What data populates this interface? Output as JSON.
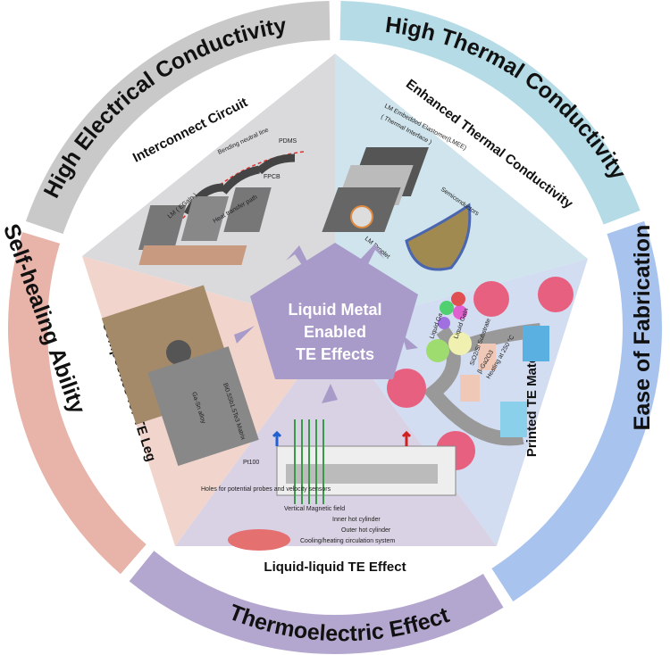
{
  "center": {
    "lines": [
      "Liquid Metal",
      "Enabled",
      "TE  Effects"
    ]
  },
  "ring": [
    {
      "label": "High Electrical Conductivity",
      "color": "#c9c9c9"
    },
    {
      "label": "High Thermal Conductivity",
      "color": "#b5dce6"
    },
    {
      "label": "Ease of Fabrication",
      "color": "#a8c4ee"
    },
    {
      "label": "Thermoelectric Effect",
      "color": "#b4a7cf"
    },
    {
      "label": "Self-healing Ability",
      "color": "#e8b3a8"
    }
  ],
  "panels": [
    {
      "label": "Interconnect Circuit",
      "color": "#dadadd",
      "annotations": [
        "Bending neutral line",
        "PDMS",
        "LM ( EGaIn )",
        "FPCB",
        "Heat transfer path"
      ]
    },
    {
      "label": "Enhanced Thermal Conductivity",
      "color": "#cfe4ec",
      "annotations": [
        "LM Embedded Elastomer(LMEE)",
        "( Thermal Interface )",
        "Semiconductors",
        "LM Droplet"
      ]
    },
    {
      "label": "Printed TE Materials",
      "color": "#d3ddf2",
      "annotations": [
        "Liquid GaIn",
        "Liquid Ga",
        "SiO2/Si Substrate",
        "β-Ga2O3",
        "Heating at 250 °C"
      ]
    },
    {
      "label": "Liquid-liquid TE Effect",
      "color": "#d9d1e4",
      "annotations": [
        "Pt100",
        "Holes for potential probes and velocity sensors",
        "Vertical Magnetic field",
        "Inner hot cylinder",
        "Outer hot cylinder",
        "Cooling/heating circulation system"
      ]
    },
    {
      "label": "Composites for TE Leg",
      "color": "#f1d5cc",
      "annotations": [
        "Bi0.5Sb1.5Te3 Matrix",
        "Ga-Sn alloy"
      ]
    }
  ],
  "center_color": "#a89bc9"
}
